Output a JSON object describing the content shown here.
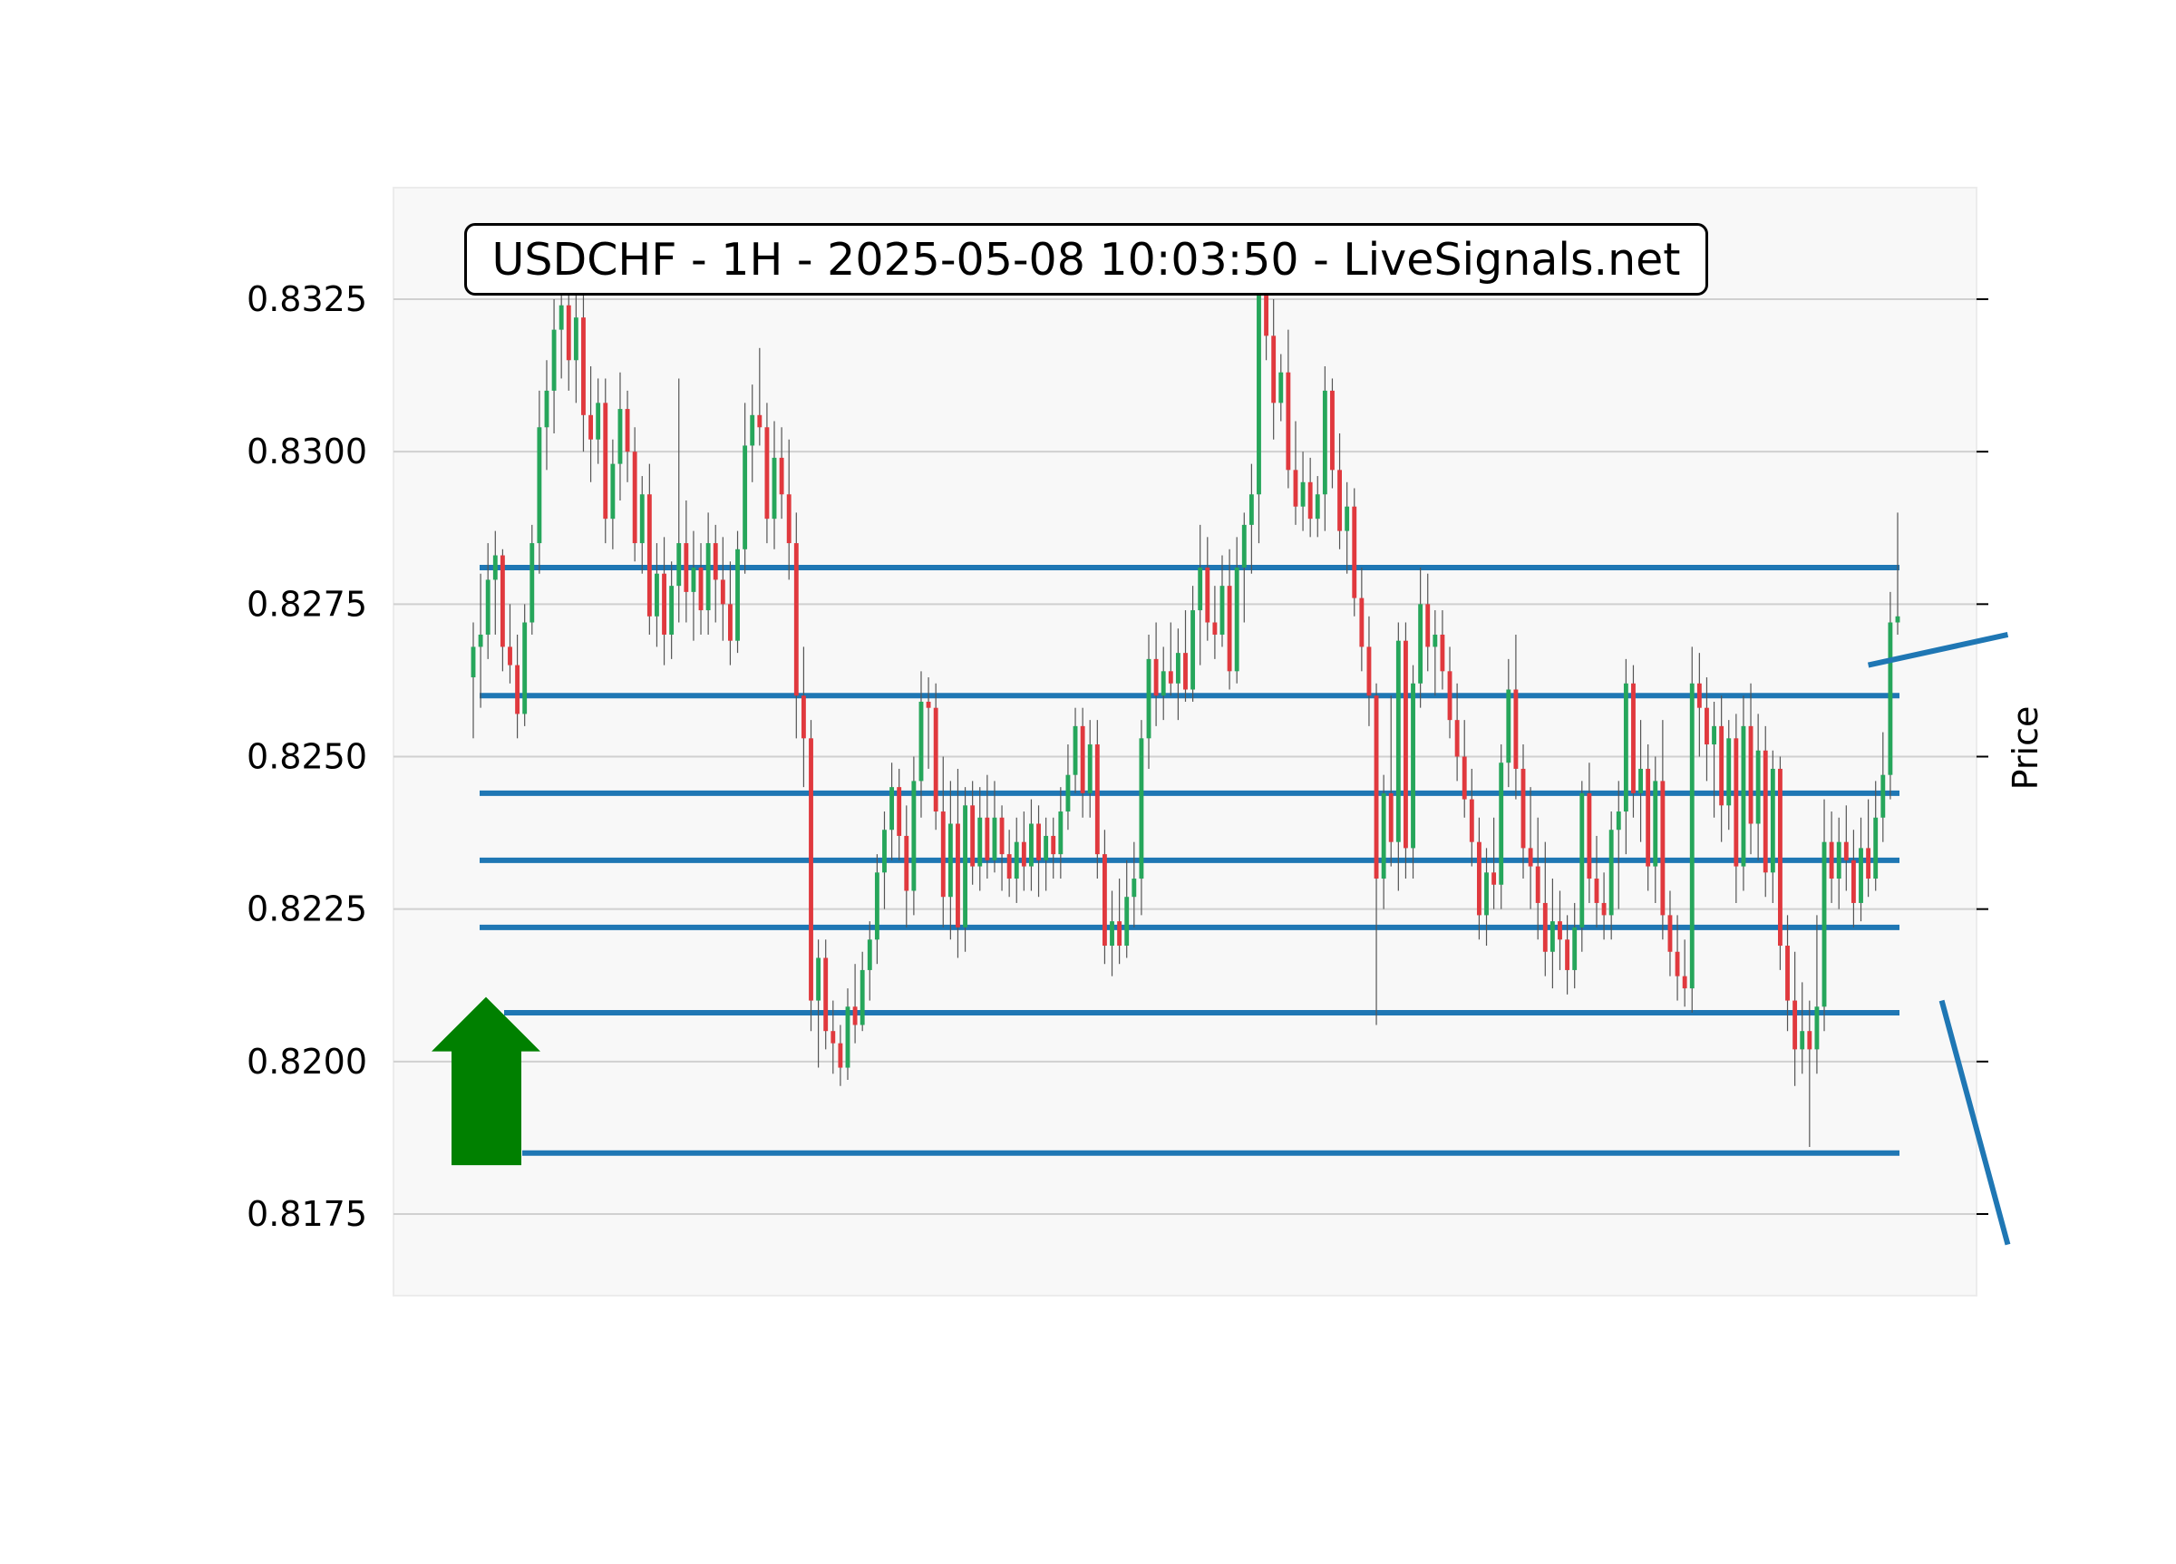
{
  "chart_data": {
    "type": "candlestick",
    "title": "USDCHF - 1H - 2025-05-08 10:03:50 - LiveSignals.net",
    "xlabel": "",
    "ylabel": "Price",
    "ylim": [
      0.816,
      0.8342
    ],
    "yticks": [
      "0.8325",
      "0.8300",
      "0.8275",
      "0.8250",
      "0.8225",
      "0.8200",
      "0.8175"
    ],
    "ytick_values": [
      0.8325,
      0.83,
      0.8275,
      0.825,
      0.8225,
      0.82,
      0.8175
    ],
    "grid": true,
    "colors": {
      "up": "#26a65b",
      "down": "#e0393e",
      "level": "#1f77b4",
      "signal": "#008000",
      "grid": "#d0d0d0",
      "plot_bg": "#f8f8f8"
    },
    "signal": {
      "direction": "up",
      "icon": "buy-arrow-icon",
      "price_range": [
        0.8183,
        0.821
      ]
    },
    "horizontal_levels": [
      0.8281,
      0.826,
      0.8244,
      0.8233,
      0.8222,
      0.8208,
      0.8185
    ],
    "trend_lines": [
      {
        "from": {
          "bar": 190,
          "price": 0.8265
        },
        "to": {
          "bar": 209,
          "price": 0.827
        }
      },
      {
        "from": {
          "bar": 200,
          "price": 0.821
        },
        "to": {
          "bar": 209,
          "price": 0.817
        }
      }
    ],
    "candles": [
      [
        0.8263,
        0.8272,
        0.8253,
        0.8268
      ],
      [
        0.8268,
        0.828,
        0.8258,
        0.827
      ],
      [
        0.827,
        0.8285,
        0.8266,
        0.8279
      ],
      [
        0.8279,
        0.8287,
        0.827,
        0.8283
      ],
      [
        0.8283,
        0.8284,
        0.8264,
        0.8268
      ],
      [
        0.8268,
        0.8275,
        0.8262,
        0.8265
      ],
      [
        0.8265,
        0.827,
        0.8253,
        0.8257
      ],
      [
        0.8257,
        0.8275,
        0.8255,
        0.8272
      ],
      [
        0.8272,
        0.8288,
        0.827,
        0.8285
      ],
      [
        0.8285,
        0.831,
        0.828,
        0.8304
      ],
      [
        0.8304,
        0.8315,
        0.8297,
        0.831
      ],
      [
        0.831,
        0.8325,
        0.8303,
        0.832
      ],
      [
        0.832,
        0.8329,
        0.8312,
        0.8324
      ],
      [
        0.8324,
        0.833,
        0.831,
        0.8315
      ],
      [
        0.8315,
        0.8328,
        0.8308,
        0.8322
      ],
      [
        0.8322,
        0.8326,
        0.83,
        0.8306
      ],
      [
        0.8306,
        0.8314,
        0.8295,
        0.8302
      ],
      [
        0.8302,
        0.8312,
        0.8298,
        0.8308
      ],
      [
        0.8308,
        0.8312,
        0.8285,
        0.8289
      ],
      [
        0.8289,
        0.8302,
        0.8284,
        0.8298
      ],
      [
        0.8298,
        0.8313,
        0.8292,
        0.8307
      ],
      [
        0.8307,
        0.831,
        0.8295,
        0.83
      ],
      [
        0.83,
        0.8304,
        0.8282,
        0.8285
      ],
      [
        0.8285,
        0.8296,
        0.828,
        0.8293
      ],
      [
        0.8293,
        0.8298,
        0.827,
        0.8273
      ],
      [
        0.8273,
        0.8285,
        0.8268,
        0.828
      ],
      [
        0.828,
        0.8286,
        0.8265,
        0.827
      ],
      [
        0.827,
        0.8282,
        0.8266,
        0.8278
      ],
      [
        0.8278,
        0.8312,
        0.8272,
        0.8285
      ],
      [
        0.8285,
        0.8292,
        0.8272,
        0.8277
      ],
      [
        0.8277,
        0.8287,
        0.8269,
        0.8281
      ],
      [
        0.8281,
        0.8285,
        0.827,
        0.8274
      ],
      [
        0.8274,
        0.829,
        0.827,
        0.8285
      ],
      [
        0.8285,
        0.8288,
        0.8272,
        0.8279
      ],
      [
        0.8279,
        0.8286,
        0.8269,
        0.8275
      ],
      [
        0.8275,
        0.8282,
        0.8265,
        0.8269
      ],
      [
        0.8269,
        0.8287,
        0.8267,
        0.8284
      ],
      [
        0.8284,
        0.8308,
        0.828,
        0.8301
      ],
      [
        0.8301,
        0.8311,
        0.8295,
        0.8306
      ],
      [
        0.8306,
        0.8317,
        0.8301,
        0.8304
      ],
      [
        0.8304,
        0.8308,
        0.8285,
        0.8289
      ],
      [
        0.8289,
        0.8305,
        0.8284,
        0.8299
      ],
      [
        0.8299,
        0.8304,
        0.8289,
        0.8293
      ],
      [
        0.8293,
        0.8302,
        0.8279,
        0.8285
      ],
      [
        0.8285,
        0.829,
        0.8253,
        0.826
      ],
      [
        0.826,
        0.8268,
        0.8245,
        0.8253
      ],
      [
        0.8253,
        0.8256,
        0.8205,
        0.821
      ],
      [
        0.821,
        0.822,
        0.8199,
        0.8217
      ],
      [
        0.8217,
        0.822,
        0.8202,
        0.8205
      ],
      [
        0.8205,
        0.821,
        0.8198,
        0.8203
      ],
      [
        0.8203,
        0.8206,
        0.8196,
        0.8199
      ],
      [
        0.8199,
        0.8212,
        0.8197,
        0.8209
      ],
      [
        0.8209,
        0.8216,
        0.8203,
        0.8206
      ],
      [
        0.8206,
        0.8218,
        0.8205,
        0.8215
      ],
      [
        0.8215,
        0.8223,
        0.821,
        0.822
      ],
      [
        0.822,
        0.8234,
        0.8216,
        0.8231
      ],
      [
        0.8231,
        0.8241,
        0.8225,
        0.8238
      ],
      [
        0.8238,
        0.8249,
        0.8233,
        0.8245
      ],
      [
        0.8245,
        0.8248,
        0.8233,
        0.8237
      ],
      [
        0.8237,
        0.8242,
        0.8222,
        0.8228
      ],
      [
        0.8228,
        0.825,
        0.8224,
        0.8246
      ],
      [
        0.8246,
        0.8264,
        0.824,
        0.8259
      ],
      [
        0.8259,
        0.8263,
        0.8248,
        0.8258
      ],
      [
        0.8258,
        0.8262,
        0.8238,
        0.8241
      ],
      [
        0.8241,
        0.825,
        0.8222,
        0.8227
      ],
      [
        0.8227,
        0.8246,
        0.822,
        0.8239
      ],
      [
        0.8239,
        0.8248,
        0.8217,
        0.8222
      ],
      [
        0.8222,
        0.8245,
        0.8218,
        0.8242
      ],
      [
        0.8242,
        0.8246,
        0.8229,
        0.8232
      ],
      [
        0.8232,
        0.8245,
        0.8228,
        0.824
      ],
      [
        0.824,
        0.8247,
        0.823,
        0.8233
      ],
      [
        0.8233,
        0.8246,
        0.8231,
        0.824
      ],
      [
        0.824,
        0.8242,
        0.8228,
        0.8234
      ],
      [
        0.8234,
        0.8238,
        0.8227,
        0.823
      ],
      [
        0.823,
        0.824,
        0.8226,
        0.8236
      ],
      [
        0.8236,
        0.8241,
        0.8228,
        0.8232
      ],
      [
        0.8232,
        0.8243,
        0.8228,
        0.8239
      ],
      [
        0.8239,
        0.8242,
        0.8227,
        0.8233
      ],
      [
        0.8233,
        0.824,
        0.8228,
        0.8237
      ],
      [
        0.8237,
        0.824,
        0.823,
        0.8234
      ],
      [
        0.8234,
        0.8245,
        0.823,
        0.8241
      ],
      [
        0.8241,
        0.8252,
        0.8238,
        0.8247
      ],
      [
        0.8247,
        0.8258,
        0.8244,
        0.8255
      ],
      [
        0.8255,
        0.8258,
        0.824,
        0.8244
      ],
      [
        0.8244,
        0.8256,
        0.824,
        0.8252
      ],
      [
        0.8252,
        0.8256,
        0.823,
        0.8234
      ],
      [
        0.8234,
        0.8238,
        0.8216,
        0.8219
      ],
      [
        0.8219,
        0.8228,
        0.8214,
        0.8223
      ],
      [
        0.8223,
        0.823,
        0.8216,
        0.8219
      ],
      [
        0.8219,
        0.8233,
        0.8217,
        0.8227
      ],
      [
        0.8227,
        0.8236,
        0.8222,
        0.823
      ],
      [
        0.823,
        0.8256,
        0.8224,
        0.8253
      ],
      [
        0.8253,
        0.827,
        0.8248,
        0.8266
      ],
      [
        0.8266,
        0.8272,
        0.8255,
        0.826
      ],
      [
        0.826,
        0.8268,
        0.8256,
        0.8264
      ],
      [
        0.8264,
        0.8272,
        0.826,
        0.8262
      ],
      [
        0.8262,
        0.8271,
        0.8256,
        0.8267
      ],
      [
        0.8267,
        0.8274,
        0.8259,
        0.8261
      ],
      [
        0.8261,
        0.8278,
        0.8259,
        0.8274
      ],
      [
        0.8274,
        0.8288,
        0.8265,
        0.8281
      ],
      [
        0.8281,
        0.8286,
        0.8269,
        0.8272
      ],
      [
        0.8272,
        0.8278,
        0.8266,
        0.827
      ],
      [
        0.827,
        0.8283,
        0.8268,
        0.8278
      ],
      [
        0.8278,
        0.8284,
        0.8261,
        0.8264
      ],
      [
        0.8264,
        0.8286,
        0.8262,
        0.8281
      ],
      [
        0.8281,
        0.829,
        0.8272,
        0.8288
      ],
      [
        0.8288,
        0.8298,
        0.828,
        0.8293
      ],
      [
        0.8293,
        0.833,
        0.8285,
        0.8327
      ],
      [
        0.8327,
        0.8332,
        0.8315,
        0.8319
      ],
      [
        0.8319,
        0.8325,
        0.8302,
        0.8308
      ],
      [
        0.8308,
        0.8316,
        0.8305,
        0.8313
      ],
      [
        0.8313,
        0.832,
        0.8294,
        0.8297
      ],
      [
        0.8297,
        0.8305,
        0.8288,
        0.8291
      ],
      [
        0.8291,
        0.83,
        0.8287,
        0.8295
      ],
      [
        0.8295,
        0.8299,
        0.8286,
        0.8289
      ],
      [
        0.8289,
        0.8296,
        0.8286,
        0.8293
      ],
      [
        0.8293,
        0.8314,
        0.8287,
        0.831
      ],
      [
        0.831,
        0.8312,
        0.8294,
        0.8297
      ],
      [
        0.8297,
        0.8303,
        0.8284,
        0.8287
      ],
      [
        0.8287,
        0.8295,
        0.828,
        0.8291
      ],
      [
        0.8291,
        0.8294,
        0.8273,
        0.8276
      ],
      [
        0.8276,
        0.8281,
        0.8264,
        0.8268
      ],
      [
        0.8268,
        0.8273,
        0.8255,
        0.826
      ],
      [
        0.826,
        0.8262,
        0.8206,
        0.823
      ],
      [
        0.823,
        0.8247,
        0.8225,
        0.8244
      ],
      [
        0.8244,
        0.826,
        0.8232,
        0.8236
      ],
      [
        0.8236,
        0.8272,
        0.8228,
        0.8269
      ],
      [
        0.8269,
        0.8272,
        0.823,
        0.8235
      ],
      [
        0.8235,
        0.8265,
        0.823,
        0.8262
      ],
      [
        0.8262,
        0.8281,
        0.8258,
        0.8275
      ],
      [
        0.8275,
        0.828,
        0.8264,
        0.8268
      ],
      [
        0.8268,
        0.8274,
        0.826,
        0.827
      ],
      [
        0.827,
        0.8274,
        0.8261,
        0.8264
      ],
      [
        0.8264,
        0.8268,
        0.8253,
        0.8256
      ],
      [
        0.8256,
        0.8262,
        0.8246,
        0.825
      ],
      [
        0.825,
        0.8256,
        0.824,
        0.8243
      ],
      [
        0.8243,
        0.8248,
        0.8232,
        0.8236
      ],
      [
        0.8236,
        0.824,
        0.822,
        0.8224
      ],
      [
        0.8224,
        0.8235,
        0.8219,
        0.8231
      ],
      [
        0.8231,
        0.824,
        0.8225,
        0.8229
      ],
      [
        0.8229,
        0.8252,
        0.8225,
        0.8249
      ],
      [
        0.8249,
        0.8266,
        0.8245,
        0.8261
      ],
      [
        0.8261,
        0.827,
        0.8243,
        0.8248
      ],
      [
        0.8248,
        0.8252,
        0.823,
        0.8235
      ],
      [
        0.8235,
        0.8245,
        0.8225,
        0.8232
      ],
      [
        0.8232,
        0.824,
        0.822,
        0.8226
      ],
      [
        0.8226,
        0.8236,
        0.8214,
        0.8218
      ],
      [
        0.8218,
        0.823,
        0.8212,
        0.8223
      ],
      [
        0.8223,
        0.8228,
        0.8215,
        0.822
      ],
      [
        0.822,
        0.8224,
        0.8211,
        0.8215
      ],
      [
        0.8215,
        0.8226,
        0.8212,
        0.8222
      ],
      [
        0.8222,
        0.8246,
        0.8218,
        0.8244
      ],
      [
        0.8244,
        0.8249,
        0.8226,
        0.823
      ],
      [
        0.823,
        0.8237,
        0.8222,
        0.8226
      ],
      [
        0.8226,
        0.8231,
        0.822,
        0.8224
      ],
      [
        0.8224,
        0.8241,
        0.822,
        0.8238
      ],
      [
        0.8238,
        0.8246,
        0.8225,
        0.8241
      ],
      [
        0.8241,
        0.8266,
        0.8234,
        0.8262
      ],
      [
        0.8262,
        0.8265,
        0.824,
        0.8244
      ],
      [
        0.8244,
        0.8256,
        0.8236,
        0.8248
      ],
      [
        0.8248,
        0.8252,
        0.8228,
        0.8232
      ],
      [
        0.8232,
        0.825,
        0.8226,
        0.8246
      ],
      [
        0.8246,
        0.8256,
        0.822,
        0.8224
      ],
      [
        0.8224,
        0.8228,
        0.8214,
        0.8218
      ],
      [
        0.8218,
        0.8224,
        0.821,
        0.8214
      ],
      [
        0.8214,
        0.822,
        0.8209,
        0.8212
      ],
      [
        0.8212,
        0.8268,
        0.8208,
        0.8262
      ],
      [
        0.8262,
        0.8267,
        0.825,
        0.8258
      ],
      [
        0.8258,
        0.8263,
        0.8246,
        0.8252
      ],
      [
        0.8252,
        0.8259,
        0.824,
        0.8255
      ],
      [
        0.8255,
        0.826,
        0.8236,
        0.8242
      ],
      [
        0.8242,
        0.8256,
        0.8238,
        0.8253
      ],
      [
        0.8253,
        0.8257,
        0.8226,
        0.8232
      ],
      [
        0.8232,
        0.826,
        0.8228,
        0.8255
      ],
      [
        0.8255,
        0.8262,
        0.8234,
        0.8239
      ],
      [
        0.8239,
        0.8257,
        0.8233,
        0.8251
      ],
      [
        0.8251,
        0.8255,
        0.8227,
        0.8231
      ],
      [
        0.8231,
        0.8251,
        0.8226,
        0.8248
      ],
      [
        0.8248,
        0.825,
        0.8215,
        0.8219
      ],
      [
        0.8219,
        0.8224,
        0.8205,
        0.821
      ],
      [
        0.821,
        0.8218,
        0.8196,
        0.8202
      ],
      [
        0.8202,
        0.8213,
        0.8198,
        0.8205
      ],
      [
        0.8205,
        0.821,
        0.8186,
        0.8202
      ],
      [
        0.8202,
        0.8224,
        0.8198,
        0.8209
      ],
      [
        0.8209,
        0.8243,
        0.8205,
        0.8236
      ],
      [
        0.8236,
        0.8241,
        0.8226,
        0.823
      ],
      [
        0.823,
        0.824,
        0.8225,
        0.8236
      ],
      [
        0.8236,
        0.8242,
        0.8228,
        0.8233
      ],
      [
        0.8233,
        0.8238,
        0.8222,
        0.8226
      ],
      [
        0.8226,
        0.824,
        0.8223,
        0.8235
      ],
      [
        0.8235,
        0.8243,
        0.8227,
        0.823
      ],
      [
        0.823,
        0.8246,
        0.8228,
        0.824
      ],
      [
        0.824,
        0.8254,
        0.8236,
        0.8247
      ],
      [
        0.8247,
        0.8277,
        0.8243,
        0.8272
      ],
      [
        0.8272,
        0.829,
        0.827,
        0.8273
      ]
    ]
  }
}
